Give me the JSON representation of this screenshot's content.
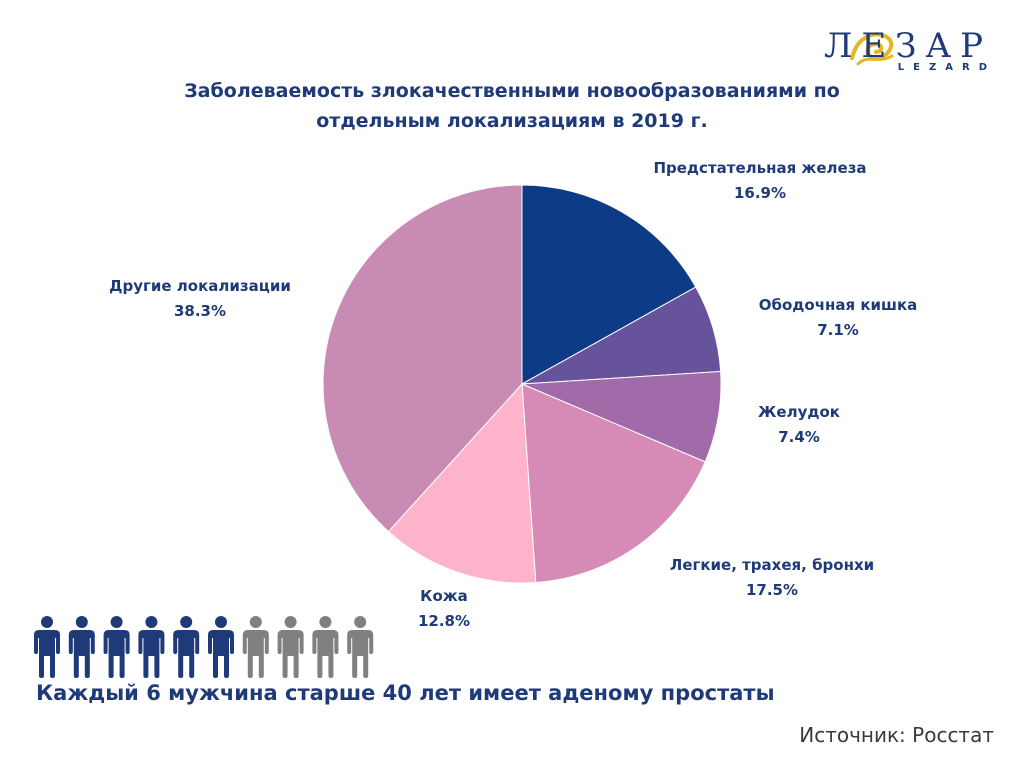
{
  "brand": {
    "logo_text": "ЛЕЗАР",
    "logo_sub": "LEZARD",
    "colors": {
      "navy": "#1e3a78",
      "gold": "#e3b81f"
    }
  },
  "chart_data": {
    "type": "pie",
    "title_lines": [
      "Заболеваемость злокачественными новообразованиями по",
      "отдельным локализациям в 2019 г."
    ],
    "unit": "%",
    "slices": [
      {
        "label": "Предстательная железа",
        "value": 16.9,
        "value_text": "16.9%",
        "color": "#0e3b85"
      },
      {
        "label": "Ободочная кишка",
        "value": 7.1,
        "value_text": "7.1%",
        "color": "#67529c"
      },
      {
        "label": "Желудок",
        "value": 7.4,
        "value_text": "7.4%",
        "color": "#a16ba9"
      },
      {
        "label": "Легкие, трахея, бронхи",
        "value": 17.5,
        "value_text": "17.5%",
        "color": "#d58bb6"
      },
      {
        "label": "Кожа",
        "value": 12.8,
        "value_text": "12.8%",
        "color": "#fdb3ca"
      },
      {
        "label": "Другие локализации",
        "value": 38.3,
        "value_text": "38.3%",
        "color": "#c88cb4"
      }
    ],
    "start_angle_deg": 0,
    "direction": "clockwise",
    "labels_position": "outside"
  },
  "infographic": {
    "people_total": 10,
    "people_highlighted": 6,
    "highlight_color": "#1e3a78",
    "other_color": "#808080",
    "icon": "person-icon",
    "caption": "Каждый 6 мужчина старше 40 лет имеет аденому простаты"
  },
  "footer": {
    "source": "Источник: Росстат"
  }
}
